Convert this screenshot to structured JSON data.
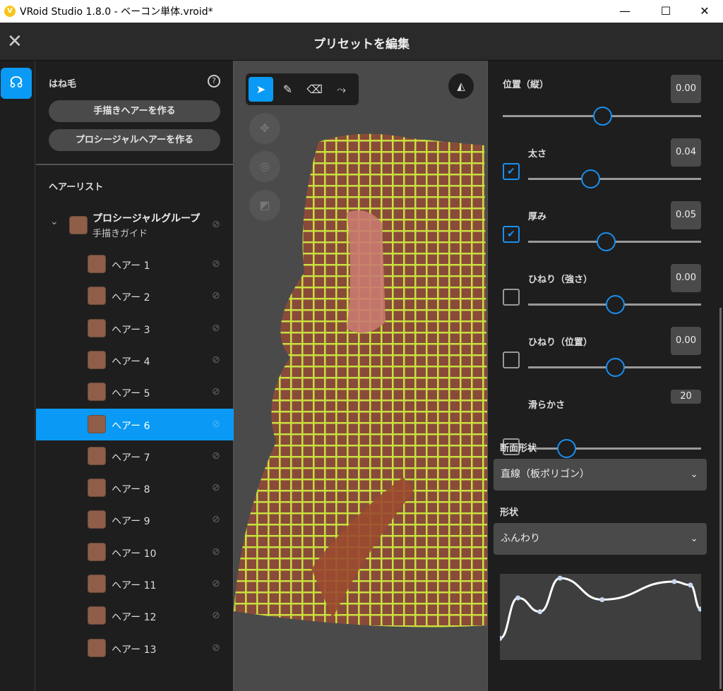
{
  "window": {
    "title": "VRoid Studio 1.8.0 - ベーコン単体.vroid*",
    "minimize": "—",
    "maximize": "☐",
    "close": "✕"
  },
  "header": {
    "title": "プリセットを編集",
    "close_icon": "close-icon"
  },
  "left_panel": {
    "section_title": "はね毛",
    "help": "?",
    "btn_handdrawn": "手描きヘアーを作る",
    "btn_procedural": "プロシージャルヘアーを作る",
    "list_title": "ヘアーリスト",
    "group": {
      "name": "プロシージャルグループ",
      "subtitle": "手描きガイド"
    },
    "swatch_color": "#8f5e48",
    "items": [
      {
        "name": "ヘアー 1"
      },
      {
        "name": "ヘアー 2"
      },
      {
        "name": "ヘアー 3"
      },
      {
        "name": "ヘアー 4"
      },
      {
        "name": "ヘアー 5"
      },
      {
        "name": "ヘアー 6",
        "selected": true
      },
      {
        "name": "ヘアー 7"
      },
      {
        "name": "ヘアー 8"
      },
      {
        "name": "ヘアー 9"
      },
      {
        "name": "ヘアー 10"
      },
      {
        "name": "ヘアー 11"
      },
      {
        "name": "ヘアー 12"
      },
      {
        "name": "ヘアー 13"
      }
    ]
  },
  "accent": "#0a9af5",
  "right_panel": {
    "params": [
      {
        "label": "位置（縦）",
        "value": "0.00",
        "level": 0.5,
        "checkbox": null
      },
      {
        "label": "太さ",
        "value": "0.04",
        "level": 0.36,
        "checkbox": true
      },
      {
        "label": "厚み",
        "value": "0.05",
        "level": 0.45,
        "checkbox": true
      },
      {
        "label": "ひねり（強さ）",
        "value": "0.00",
        "level": 0.5,
        "checkbox": false
      },
      {
        "label": "ひねり（位置）",
        "value": "0.00",
        "level": 0.5,
        "checkbox": false
      },
      {
        "label": "滑らかさ",
        "value": "20",
        "level": 0.22,
        "checkbox": false
      }
    ],
    "cross_section_label": "断面形状",
    "cross_section_value": "直線（板ポリゴン）",
    "shape_label": "形状",
    "shape_value": "ふんわり",
    "curve_points": [
      [
        0,
        0.25
      ],
      [
        0.09,
        0.72
      ],
      [
        0.2,
        0.56
      ],
      [
        0.3,
        0.95
      ],
      [
        0.51,
        0.7
      ],
      [
        0.87,
        0.91
      ],
      [
        0.95,
        0.87
      ],
      [
        1,
        0.59
      ]
    ]
  }
}
